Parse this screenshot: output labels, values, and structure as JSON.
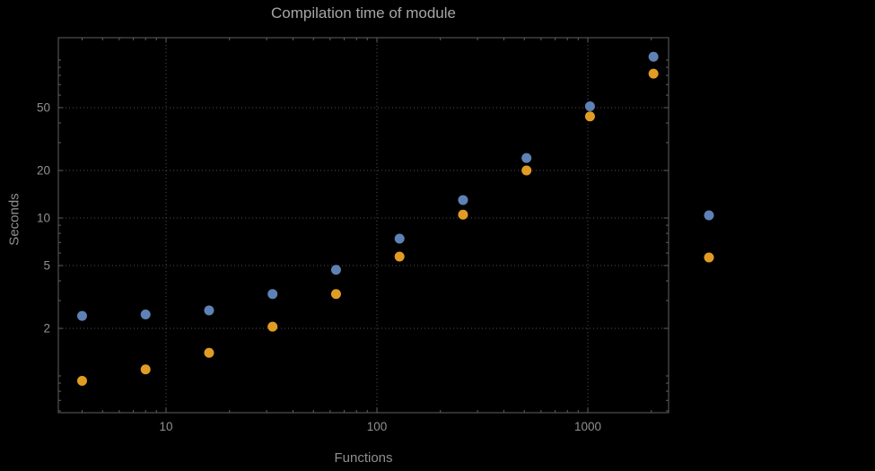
{
  "chart_data": {
    "type": "scatter",
    "title": "Compilation time of module",
    "xlabel": "Functions",
    "ylabel": "Seconds",
    "xscale": "log",
    "yscale": "log",
    "xlim": [
      3.1,
      2420
    ],
    "ylim": [
      0.59,
      140
    ],
    "x_ticks": [
      10,
      100,
      1000
    ],
    "x_tick_labels": [
      "10",
      "100",
      "1000"
    ],
    "y_ticks": [
      2,
      5,
      10,
      20,
      50
    ],
    "y_tick_labels": [
      "2",
      "5",
      "10",
      "20",
      "50"
    ],
    "grid": true,
    "grid_style": "dotted",
    "x": [
      4,
      8,
      16,
      32,
      64,
      128,
      256,
      512,
      1024,
      2048
    ],
    "series": [
      {
        "name": "blue",
        "color": "#5e82b5",
        "values": [
          2.4,
          2.45,
          2.6,
          3.3,
          4.7,
          7.4,
          13,
          24,
          51,
          105
        ]
      },
      {
        "name": "orange",
        "color": "#e19c24",
        "values": [
          0.93,
          1.1,
          1.4,
          2.05,
          3.3,
          5.7,
          10.5,
          20,
          44,
          82
        ]
      }
    ],
    "legend": {
      "position": "right-outside",
      "markers": [
        {
          "name": "blue",
          "color": "#5e82b5"
        },
        {
          "name": "orange",
          "color": "#e19c24"
        }
      ]
    }
  },
  "colors": {
    "background": "#000000",
    "frame": "#606060",
    "grid": "#4f4f4f",
    "tick_text": "#909090",
    "title_text": "#a6a6a6",
    "axis_label_text": "#8f8f8f"
  }
}
